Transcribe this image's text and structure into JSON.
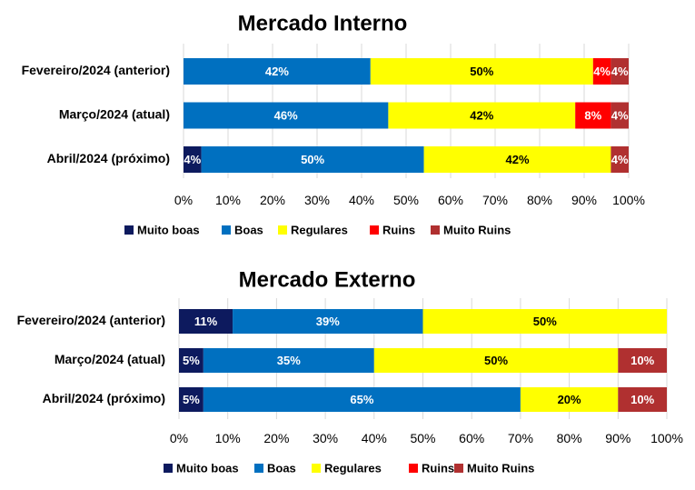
{
  "chart_data": [
    {
      "type": "bar",
      "orientation": "horizontal",
      "stacked": true,
      "percent": true,
      "title": "Mercado Interno",
      "categories": [
        "Fevereiro/2024 (anterior)",
        "Março/2024 (atual)",
        "Abril/2024 (próximo)"
      ],
      "series": [
        {
          "name": "Muito boas",
          "color": "#0d1a5e",
          "values": [
            0,
            0,
            4
          ]
        },
        {
          "name": "Boas",
          "color": "#0070c0",
          "values": [
            42,
            46,
            50
          ]
        },
        {
          "name": "Regulares",
          "color": "#ffff00",
          "values": [
            50,
            42,
            42
          ]
        },
        {
          "name": "Ruins",
          "color": "#ff0000",
          "values": [
            4,
            8,
            0
          ]
        },
        {
          "name": "Muito Ruins",
          "color": "#b03030",
          "values": [
            4,
            4,
            4
          ]
        }
      ],
      "xticks": [
        "0%",
        "10%",
        "20%",
        "30%",
        "40%",
        "50%",
        "60%",
        "70%",
        "80%",
        "90%",
        "100%"
      ],
      "xlim": [
        0,
        100
      ],
      "legend": "bottom"
    },
    {
      "type": "bar",
      "orientation": "horizontal",
      "stacked": true,
      "percent": true,
      "title": "Mercado Externo",
      "categories": [
        "Fevereiro/2024 (anterior)",
        "Março/2024 (atual)",
        "Abril/2024 (próximo)"
      ],
      "series": [
        {
          "name": "Muito boas",
          "color": "#0d1a5e",
          "values": [
            11,
            5,
            5
          ]
        },
        {
          "name": "Boas",
          "color": "#0070c0",
          "values": [
            39,
            35,
            65
          ]
        },
        {
          "name": "Regulares",
          "color": "#ffff00",
          "values": [
            50,
            50,
            20
          ]
        },
        {
          "name": "Ruins",
          "color": "#ff0000",
          "values": [
            0,
            0,
            0
          ]
        },
        {
          "name": "Muito Ruins",
          "color": "#b03030",
          "values": [
            0,
            10,
            10
          ]
        }
      ],
      "xticks": [
        "0%",
        "10%",
        "20%",
        "30%",
        "40%",
        "50%",
        "60%",
        "70%",
        "80%",
        "90%",
        "100%"
      ],
      "xlim": [
        0,
        100
      ],
      "legend": "bottom"
    }
  ]
}
